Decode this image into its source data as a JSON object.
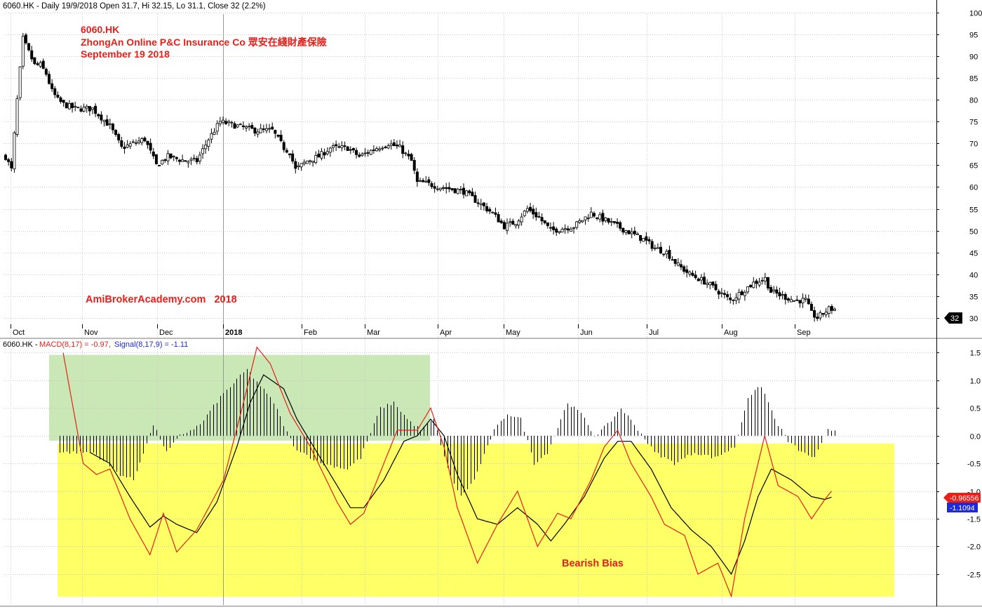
{
  "price_panel": {
    "header": "6060.HK - Daily 19/9/2018 Open 31.7, Hi 32.15, Lo 31.1, Close 32 (2.2%)",
    "title_lines": [
      "6060.HK",
      "ZhongAn Online P&C Insurance Co 眾安在綫財產保險",
      "September 19 2018"
    ],
    "watermark": "AmiBrokerAcademy.com   2018",
    "last_price_tag": "32"
  },
  "macd_panel": {
    "header_prefix": "6060.HK - ",
    "macd_label": "MACD(8,17) = -0.97,",
    "signal_label": "Signal(8,17,9) = -1.11",
    "macd_tag": "-0.96556",
    "signal_tag": "-1.1094",
    "bearish_label": "Bearish Bias"
  },
  "colors": {
    "macd": "#e8201a",
    "signal": "#1e2ad2",
    "bearish_text": "#e8201a",
    "title_text": "#e8201a",
    "green_zone": "#c9e8b6",
    "yellow_zone": "#ffff66",
    "grid": "#c8c8c8"
  },
  "chart_data": [
    {
      "type": "candlestick",
      "y_ticks": [
        30,
        35,
        40,
        45,
        50,
        55,
        60,
        65,
        70,
        75,
        80,
        85,
        90,
        95,
        100
      ],
      "ylim": [
        28.5,
        101
      ],
      "x_ticks": [
        "Oct",
        "Nov",
        "Dec",
        "2018",
        "Feb",
        "Mar",
        "Apr",
        "May",
        "Jun",
        "Jul",
        "Aug",
        "Sep"
      ],
      "close_anchors": [
        [
          0,
          67
        ],
        [
          2,
          64
        ],
        [
          4,
          80
        ],
        [
          6,
          94
        ],
        [
          8,
          91
        ],
        [
          10,
          88
        ],
        [
          12,
          88
        ],
        [
          14,
          86
        ],
        [
          16,
          82
        ],
        [
          18,
          80
        ],
        [
          20,
          79
        ],
        [
          24,
          78
        ],
        [
          30,
          78
        ],
        [
          36,
          74
        ],
        [
          40,
          69
        ],
        [
          44,
          70
        ],
        [
          48,
          71
        ],
        [
          52,
          65
        ],
        [
          56,
          67
        ],
        [
          62,
          66
        ],
        [
          66,
          66
        ],
        [
          70,
          71
        ],
        [
          74,
          75
        ],
        [
          80,
          74
        ],
        [
          86,
          73
        ],
        [
          92,
          73
        ],
        [
          96,
          69
        ],
        [
          98,
          68
        ],
        [
          100,
          64
        ],
        [
          104,
          66
        ],
        [
          108,
          67
        ],
        [
          112,
          69
        ],
        [
          118,
          69
        ],
        [
          122,
          67
        ],
        [
          128,
          69
        ],
        [
          132,
          70
        ],
        [
          136,
          69
        ],
        [
          140,
          66
        ],
        [
          142,
          61
        ],
        [
          144,
          61
        ],
        [
          150,
          60
        ],
        [
          158,
          59
        ],
        [
          164,
          56
        ],
        [
          168,
          54
        ],
        [
          172,
          51
        ],
        [
          176,
          52
        ],
        [
          180,
          55
        ],
        [
          184,
          53
        ],
        [
          188,
          50
        ],
        [
          196,
          51
        ],
        [
          202,
          54
        ],
        [
          208,
          52
        ],
        [
          214,
          50
        ],
        [
          220,
          48
        ],
        [
          224,
          46
        ],
        [
          228,
          45
        ],
        [
          232,
          42
        ],
        [
          236,
          40
        ],
        [
          242,
          38
        ],
        [
          246,
          36
        ],
        [
          250,
          34
        ],
        [
          254,
          36
        ],
        [
          258,
          38
        ],
        [
          262,
          39
        ],
        [
          264,
          36
        ],
        [
          268,
          35
        ],
        [
          272,
          34
        ],
        [
          276,
          34
        ],
        [
          278,
          31
        ],
        [
          280,
          30
        ],
        [
          284,
          32
        ],
        [
          286,
          32
        ]
      ],
      "last_close": 32
    },
    {
      "type": "line",
      "series": [
        {
          "name": "MACD(8,17)",
          "anchors": [
            [
              0,
              1.5
            ],
            [
              6,
              -0.5
            ],
            [
              10,
              -0.7
            ],
            [
              14,
              -0.6
            ],
            [
              20,
              -1.5
            ],
            [
              26,
              -2.15
            ],
            [
              30,
              -1.4
            ],
            [
              34,
              -2.1
            ],
            [
              40,
              -1.7
            ],
            [
              48,
              -0.8
            ],
            [
              54,
              0.6
            ],
            [
              58,
              1.6
            ],
            [
              62,
              1.3
            ],
            [
              68,
              0.4
            ],
            [
              74,
              -0.2
            ],
            [
              82,
              -1.2
            ],
            [
              86,
              -1.6
            ],
            [
              90,
              -1.4
            ],
            [
              96,
              -0.5
            ],
            [
              100,
              0.1
            ],
            [
              106,
              0.1
            ],
            [
              110,
              0.5
            ],
            [
              114,
              -0.2
            ],
            [
              118,
              -1.3
            ],
            [
              124,
              -2.3
            ],
            [
              130,
              -1.6
            ],
            [
              136,
              -1.0
            ],
            [
              142,
              -2.0
            ],
            [
              148,
              -1.4
            ],
            [
              152,
              -1.5
            ],
            [
              158,
              -0.8
            ],
            [
              162,
              -0.2
            ],
            [
              166,
              0.1
            ],
            [
              170,
              -0.5
            ],
            [
              176,
              -1.1
            ],
            [
              180,
              -1.6
            ],
            [
              186,
              -1.8
            ],
            [
              190,
              -2.5
            ],
            [
              196,
              -2.3
            ],
            [
              200,
              -2.9
            ],
            [
              204,
              -1.5
            ],
            [
              208,
              -0.5
            ],
            [
              210,
              0.0
            ],
            [
              214,
              -0.9
            ],
            [
              220,
              -1.1
            ],
            [
              224,
              -1.5
            ],
            [
              228,
              -1.15
            ],
            [
              230,
              -1.0
            ]
          ],
          "last": -0.97
        },
        {
          "name": "Signal(8,17,9)",
          "anchors": [
            [
              8,
              -0.3
            ],
            [
              14,
              -0.5
            ],
            [
              20,
              -1.1
            ],
            [
              26,
              -1.65
            ],
            [
              30,
              -1.45
            ],
            [
              34,
              -1.6
            ],
            [
              40,
              -1.75
            ],
            [
              46,
              -1.2
            ],
            [
              52,
              -0.2
            ],
            [
              56,
              0.6
            ],
            [
              60,
              1.1
            ],
            [
              66,
              0.85
            ],
            [
              70,
              0.3
            ],
            [
              76,
              -0.3
            ],
            [
              82,
              -0.9
            ],
            [
              86,
              -1.3
            ],
            [
              90,
              -1.3
            ],
            [
              96,
              -0.8
            ],
            [
              102,
              -0.1
            ],
            [
              106,
              0.0
            ],
            [
              110,
              0.3
            ],
            [
              114,
              0.0
            ],
            [
              118,
              -0.7
            ],
            [
              124,
              -1.5
            ],
            [
              130,
              -1.6
            ],
            [
              136,
              -1.3
            ],
            [
              142,
              -1.6
            ],
            [
              146,
              -1.9
            ],
            [
              150,
              -1.6
            ],
            [
              156,
              -1.1
            ],
            [
              162,
              -0.4
            ],
            [
              166,
              -0.1
            ],
            [
              170,
              -0.1
            ],
            [
              176,
              -0.6
            ],
            [
              182,
              -1.3
            ],
            [
              188,
              -1.7
            ],
            [
              194,
              -2.0
            ],
            [
              200,
              -2.5
            ],
            [
              204,
              -1.9
            ],
            [
              208,
              -1.1
            ],
            [
              212,
              -0.6
            ],
            [
              218,
              -0.8
            ],
            [
              224,
              -1.1
            ],
            [
              228,
              -1.15
            ],
            [
              230,
              -1.11
            ]
          ],
          "last": -1.11
        }
      ],
      "histogram_anchors": [
        [
          10,
          -0.3
        ],
        [
          18,
          -0.7
        ],
        [
          22,
          -0.8
        ],
        [
          28,
          0.2
        ],
        [
          32,
          -0.3
        ],
        [
          36,
          0.0
        ],
        [
          42,
          0.2
        ],
        [
          48,
          0.7
        ],
        [
          56,
          1.2
        ],
        [
          64,
          0.6
        ],
        [
          70,
          -0.2
        ],
        [
          78,
          -0.5
        ],
        [
          86,
          -0.6
        ],
        [
          90,
          -0.4
        ],
        [
          96,
          0.5
        ],
        [
          100,
          0.6
        ],
        [
          104,
          0.3
        ],
        [
          108,
          0.1
        ],
        [
          112,
          0.3
        ],
        [
          116,
          -0.6
        ],
        [
          120,
          -1.1
        ],
        [
          124,
          -0.8
        ],
        [
          130,
          0.1
        ],
        [
          134,
          0.4
        ],
        [
          138,
          0.3
        ],
        [
          142,
          -0.5
        ],
        [
          146,
          -0.3
        ],
        [
          150,
          0.3
        ],
        [
          152,
          0.6
        ],
        [
          156,
          0.4
        ],
        [
          160,
          0.0
        ],
        [
          164,
          0.2
        ],
        [
          168,
          0.5
        ],
        [
          172,
          0.2
        ],
        [
          178,
          -0.3
        ],
        [
          184,
          -0.5
        ],
        [
          190,
          -0.3
        ],
        [
          196,
          -0.4
        ],
        [
          202,
          -0.2
        ],
        [
          206,
          0.7
        ],
        [
          210,
          0.9
        ],
        [
          214,
          0.3
        ],
        [
          218,
          -0.1
        ],
        [
          222,
          -0.3
        ],
        [
          226,
          -0.4
        ],
        [
          230,
          0.1
        ]
      ],
      "y_ticks": [
        1.5,
        1.0,
        0.5,
        0.0,
        -0.5,
        -1.0,
        -1.5,
        -2.0,
        -2.5
      ],
      "ylim": [
        -2.97,
        1.62
      ],
      "green_zone": {
        "y_range": [
          0.0,
          1.55
        ]
      },
      "yellow_zone": {
        "y_range": [
          -2.82,
          -0.05
        ]
      }
    }
  ]
}
